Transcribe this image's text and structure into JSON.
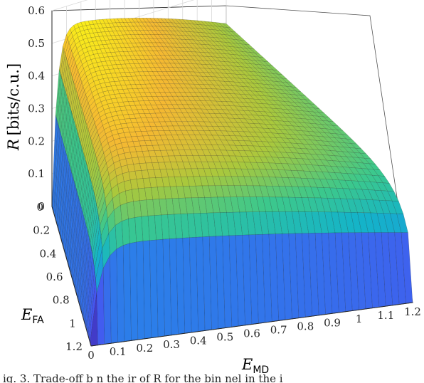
{
  "chart_data": {
    "type": "surface",
    "z_label": {
      "var": "R",
      "unit": "[bits/c.u.]"
    },
    "x_label": {
      "var": "E",
      "sub": "MD"
    },
    "y_label": {
      "var": "E",
      "sub": "FA"
    },
    "z_ticks": [
      "0",
      "0.1",
      "0.2",
      "0.3",
      "0.4",
      "0.5",
      "0.6"
    ],
    "x_ticks": [
      "0",
      "0.1",
      "0.2",
      "0.3",
      "0.4",
      "0.5",
      "0.6",
      "0.7",
      "0.8",
      "0.9",
      "1",
      "1.1",
      "1.2"
    ],
    "y_ticks": [
      "0",
      "0.2",
      "0.4",
      "0.6",
      "0.8",
      "1",
      "1.2"
    ],
    "xlim": [
      0,
      1.2
    ],
    "ylim": [
      0,
      1.2
    ],
    "zlim": [
      0,
      0.6
    ],
    "peak_R": 0.55,
    "R_at_EMD_1_2_EFA_0": 0.02,
    "R_at_EMD_0_EFA_1_2": 0.0,
    "grid": true,
    "colormap": "parula",
    "caption_fragment": "ig. 3.   Trade-off b    n the    ir  of  R  for the bin           nel in the i"
  }
}
